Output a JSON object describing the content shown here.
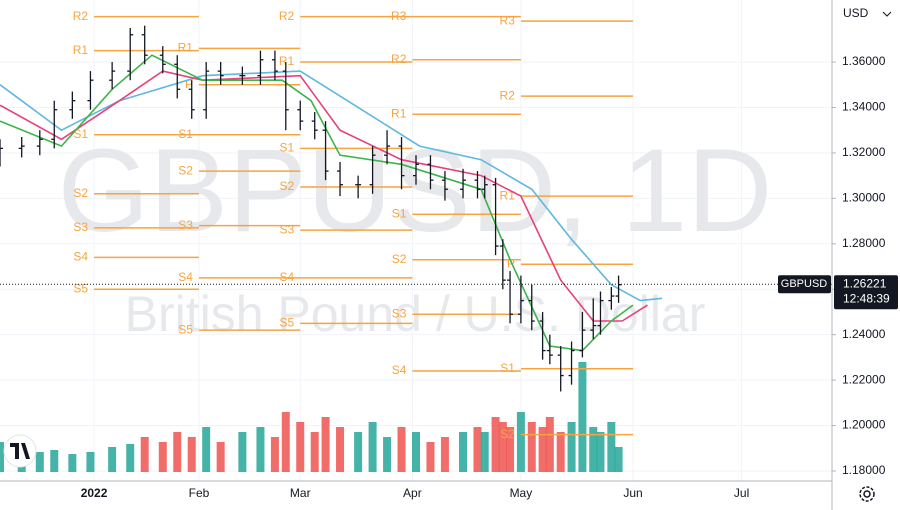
{
  "chart_data": {
    "type": "ohlc",
    "currency": "USD",
    "watermark": "GBPUSD, 1D",
    "watermark_subtitle": "British Pound / U.S. Dollar",
    "xlim": [
      -24,
      206
    ],
    "xticks": [
      {
        "value": 2,
        "label": "2022"
      },
      {
        "value": 31,
        "label": "Feb"
      },
      {
        "value": 59,
        "label": "Mar"
      },
      {
        "value": 90,
        "label": "Apr"
      },
      {
        "value": 120,
        "label": "May"
      },
      {
        "value": 151,
        "label": "Jun"
      },
      {
        "value": 181,
        "label": "Jul"
      }
    ],
    "ylim": [
      1.1756,
      1.3873
    ],
    "yticks": [
      {
        "value": 1.18,
        "label": "1.18000"
      },
      {
        "value": 1.2,
        "label": "1.20000"
      },
      {
        "value": 1.22,
        "label": "1.22000"
      },
      {
        "value": 1.24,
        "label": "1.24000"
      },
      {
        "value": 1.26,
        "label": "1.26000"
      },
      {
        "value": 1.28,
        "label": "1.28000"
      },
      {
        "value": 1.3,
        "label": "1.30000"
      },
      {
        "value": 1.32,
        "label": "1.32000"
      },
      {
        "value": 1.34,
        "label": "1.34000"
      },
      {
        "value": 1.36,
        "label": "1.36000"
      }
    ],
    "grid": true,
    "bar_color": "#131722",
    "up_color": "#26a69a",
    "down_color": "#ef5350",
    "x": [
      -24,
      -18,
      -13,
      -9,
      -4,
      1,
      7,
      12,
      16,
      21,
      25,
      29,
      33,
      37,
      43,
      48,
      52,
      55,
      59,
      63,
      66,
      70,
      75,
      79,
      83,
      87,
      91,
      95,
      99,
      104,
      108,
      110,
      113,
      115,
      117,
      120,
      123,
      126,
      128,
      131,
      134,
      137,
      140,
      142,
      145,
      147
    ],
    "open": [
      1.318,
      1.322,
      1.323,
      1.326,
      1.339,
      1.343,
      1.352,
      1.356,
      1.372,
      1.363,
      1.359,
      1.348,
      1.339,
      1.356,
      1.354,
      1.354,
      1.361,
      1.356,
      1.339,
      1.334,
      1.33,
      1.312,
      1.306,
      1.306,
      1.319,
      1.323,
      1.31,
      1.315,
      1.308,
      1.304,
      1.308,
      1.304,
      1.306,
      1.279,
      1.264,
      1.249,
      1.255,
      1.246,
      1.233,
      1.231,
      1.222,
      1.233,
      1.242,
      1.244,
      1.255,
      1.257
    ],
    "high": [
      1.326,
      1.327,
      1.33,
      1.343,
      1.347,
      1.356,
      1.36,
      1.375,
      1.376,
      1.367,
      1.363,
      1.352,
      1.36,
      1.36,
      1.358,
      1.365,
      1.365,
      1.36,
      1.343,
      1.338,
      1.334,
      1.316,
      1.31,
      1.323,
      1.33,
      1.327,
      1.319,
      1.319,
      1.312,
      1.313,
      1.312,
      1.31,
      1.309,
      1.282,
      1.268,
      1.266,
      1.262,
      1.25,
      1.24,
      1.235,
      1.237,
      1.25,
      1.256,
      1.259,
      1.261,
      1.266
    ],
    "low": [
      1.314,
      1.318,
      1.319,
      1.322,
      1.335,
      1.339,
      1.348,
      1.352,
      1.359,
      1.355,
      1.344,
      1.335,
      1.335,
      1.35,
      1.35,
      1.35,
      1.352,
      1.33,
      1.33,
      1.326,
      1.308,
      1.301,
      1.3,
      1.302,
      1.315,
      1.304,
      1.306,
      1.304,
      1.299,
      1.3,
      1.3,
      1.3,
      1.275,
      1.26,
      1.245,
      1.245,
      1.242,
      1.229,
      1.227,
      1.215,
      1.218,
      1.23,
      1.238,
      1.24,
      1.251,
      1.254
    ],
    "close": [
      1.322,
      1.323,
      1.326,
      1.339,
      1.343,
      1.352,
      1.356,
      1.372,
      1.363,
      1.359,
      1.348,
      1.339,
      1.356,
      1.354,
      1.354,
      1.361,
      1.356,
      1.339,
      1.334,
      1.33,
      1.312,
      1.306,
      1.306,
      1.319,
      1.323,
      1.31,
      1.315,
      1.308,
      1.304,
      1.308,
      1.304,
      1.306,
      1.279,
      1.264,
      1.249,
      1.255,
      1.246,
      1.233,
      1.231,
      1.222,
      1.233,
      1.242,
      1.244,
      1.255,
      1.257,
      1.262
    ],
    "vlim": [
      0,
      120
    ],
    "volume": [
      30,
      25,
      20,
      22,
      18,
      20,
      25,
      28,
      35,
      30,
      40,
      35,
      45,
      30,
      40,
      45,
      35,
      60,
      50,
      40,
      55,
      45,
      40,
      50,
      35,
      45,
      40,
      30,
      35,
      40,
      45,
      40,
      55,
      50,
      45,
      60,
      50,
      45,
      55,
      40,
      50,
      110,
      45,
      40,
      50,
      25
    ],
    "moving_averages": [
      {
        "color": "#5fb8e0",
        "x": [
          -24,
          -7,
          9,
          32,
          59,
          76,
          92,
          109,
          123,
          134,
          145,
          153,
          159
        ],
        "values": [
          1.35,
          1.33,
          1.343,
          1.354,
          1.356,
          1.339,
          1.323,
          1.317,
          1.304,
          1.282,
          1.262,
          1.255,
          1.256
        ]
      },
      {
        "color": "#e8407a",
        "x": [
          -24,
          -7,
          9,
          21,
          32,
          59,
          70,
          87,
          109,
          120,
          131,
          140,
          148,
          155
        ],
        "values": [
          1.341,
          1.326,
          1.343,
          1.356,
          1.352,
          1.354,
          1.33,
          1.317,
          1.31,
          1.301,
          1.264,
          1.246,
          1.246,
          1.253
        ]
      },
      {
        "color": "#3cb44b",
        "x": [
          -24,
          -7,
          7,
          18,
          32,
          54,
          62,
          70,
          87,
          109,
          117,
          128,
          137,
          145,
          151
        ],
        "values": [
          1.334,
          1.323,
          1.348,
          1.363,
          1.352,
          1.352,
          1.343,
          1.319,
          1.315,
          1.304,
          1.273,
          1.235,
          1.233,
          1.246,
          1.253
        ]
      }
    ],
    "pivot_color": "#f7a440",
    "pivots": [
      {
        "start": 2,
        "end": 31,
        "levels": [
          {
            "label": "R2",
            "value": 1.38
          },
          {
            "label": "R1",
            "value": 1.365
          },
          {
            "label": "S1",
            "value": 1.328
          },
          {
            "label": "S2",
            "value": 1.302
          },
          {
            "label": "S3",
            "value": 1.287
          },
          {
            "label": "S4",
            "value": 1.274
          },
          {
            "label": "S5",
            "value": 1.26
          }
        ]
      },
      {
        "start": 31,
        "end": 59,
        "levels": [
          {
            "label": "R1",
            "value": 1.366
          },
          {
            "label": "P",
            "value": 1.35
          },
          {
            "label": "S1",
            "value": 1.328
          },
          {
            "label": "S2",
            "value": 1.312
          },
          {
            "label": "S3",
            "value": 1.288
          },
          {
            "label": "S4",
            "value": 1.265
          },
          {
            "label": "S5",
            "value": 1.242
          }
        ]
      },
      {
        "start": 59,
        "end": 90,
        "levels": [
          {
            "label": "R2",
            "value": 1.38
          },
          {
            "label": "R1",
            "value": 1.36
          },
          {
            "label": "S1",
            "value": 1.322
          },
          {
            "label": "S2",
            "value": 1.305
          },
          {
            "label": "S3",
            "value": 1.286
          },
          {
            "label": "S4",
            "value": 1.265
          },
          {
            "label": "S5",
            "value": 1.245
          }
        ]
      },
      {
        "start": 90,
        "end": 120,
        "levels": [
          {
            "label": "R3",
            "value": 1.38
          },
          {
            "label": "R2",
            "value": 1.361
          },
          {
            "label": "R1",
            "value": 1.337
          },
          {
            "label": "S1",
            "value": 1.293
          },
          {
            "label": "S2",
            "value": 1.273
          },
          {
            "label": "S3",
            "value": 1.249
          },
          {
            "label": "S4",
            "value": 1.224
          }
        ]
      },
      {
        "start": 120,
        "end": 151,
        "levels": [
          {
            "label": "R3",
            "value": 1.378
          },
          {
            "label": "R2",
            "value": 1.345
          },
          {
            "label": "R1",
            "value": 1.301
          },
          {
            "label": "P",
            "value": 1.271
          },
          {
            "label": "S1",
            "value": 1.225
          },
          {
            "label": "S2",
            "value": 1.196
          }
        ]
      }
    ],
    "last_price": {
      "symbol": "GBPUSD",
      "value": 1.26221,
      "countdown": "12:48:39"
    }
  }
}
